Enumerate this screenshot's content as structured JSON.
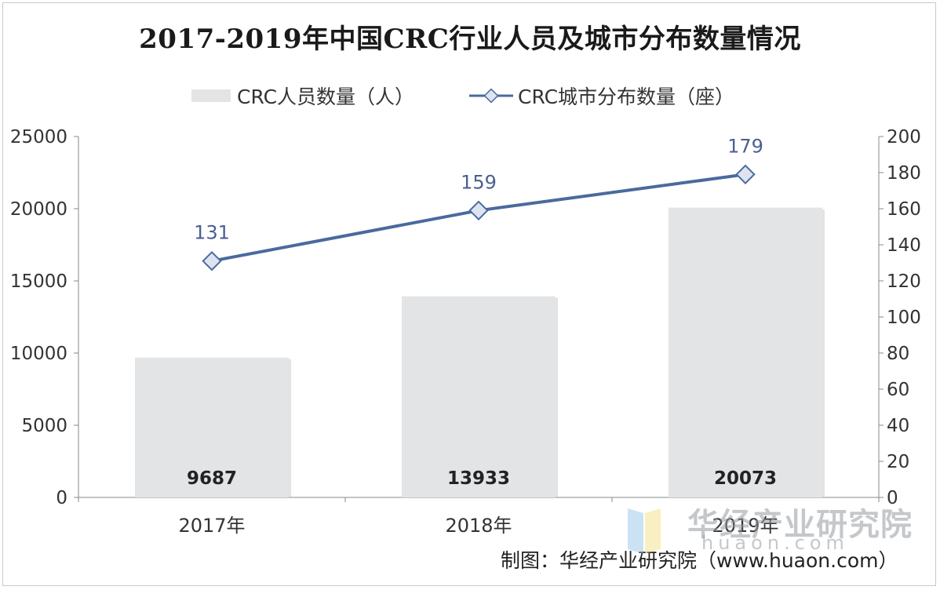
{
  "chart_data": {
    "type": "bar+line",
    "title": "2017-2019年中国CRC行业人员及城市分布数量情况",
    "categories": [
      "2017年",
      "2018年",
      "2019年"
    ],
    "series": [
      {
        "name": "CRC人员数量（人）",
        "type": "bar",
        "axis": "left",
        "values": [
          9687,
          13933,
          20073
        ],
        "color": "#e3e4e6"
      },
      {
        "name": "CRC城市分布数量（座）",
        "type": "line",
        "axis": "right",
        "values": [
          131,
          159,
          179
        ],
        "color": "#4a6a9e"
      }
    ],
    "left_axis": {
      "ylim": [
        0,
        25000
      ],
      "ticks": [
        "0",
        "5000",
        "10000",
        "15000",
        "20000",
        "25000"
      ]
    },
    "right_axis": {
      "ylim": [
        0,
        200
      ],
      "ticks": [
        "0",
        "20",
        "40",
        "60",
        "80",
        "100",
        "120",
        "140",
        "160",
        "180",
        "200"
      ]
    },
    "bar_labels": [
      "9687",
      "13933",
      "20073"
    ],
    "line_labels": [
      "131",
      "159",
      "179"
    ],
    "legend_position": "top",
    "grid": false
  },
  "source_text": "制图：华经产业研究院（www.huaon.com）",
  "watermark": {
    "name": "华经产业研究院",
    "url": "huaon.com"
  }
}
